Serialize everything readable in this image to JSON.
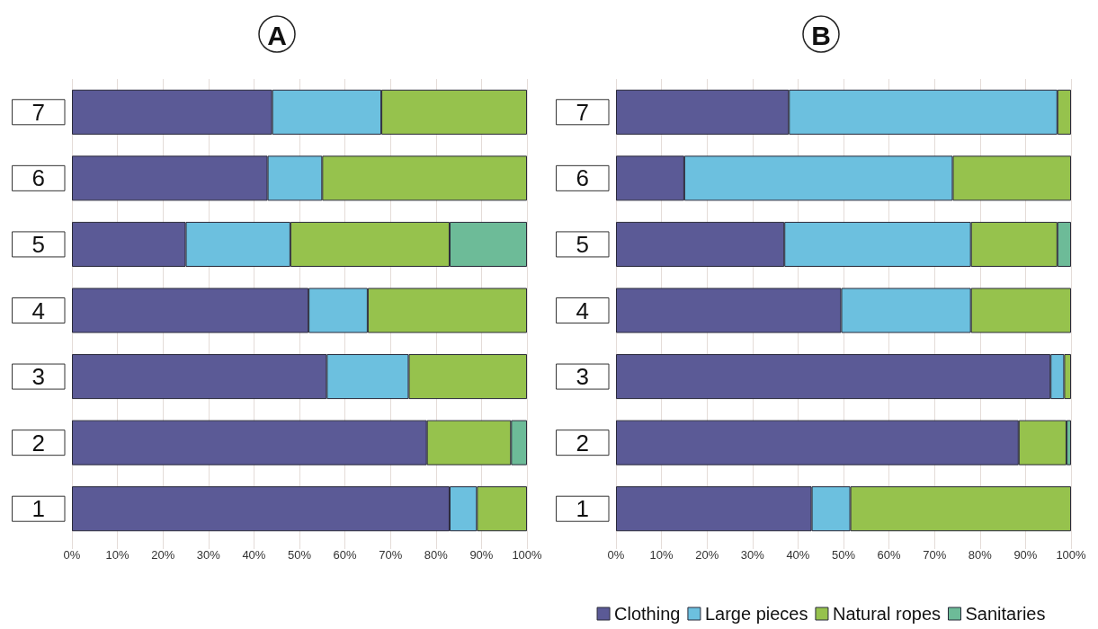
{
  "chart_data": [
    {
      "type": "bar",
      "title": "A",
      "orientation": "horizontal",
      "stacked": true,
      "categories": [
        "7",
        "6",
        "5",
        "4",
        "3",
        "2",
        "1"
      ],
      "xlim": [
        0,
        100
      ],
      "xticks": [
        {
          "value": 0,
          "label": "0%"
        },
        {
          "value": 10,
          "label": "10%"
        },
        {
          "value": 20,
          "label": "20%"
        },
        {
          "value": 30,
          "label": "30%"
        },
        {
          "value": 40,
          "label": "40%"
        },
        {
          "value": 50,
          "label": "50%"
        },
        {
          "value": 60,
          "label": "60%"
        },
        {
          "value": 70,
          "label": "70%"
        },
        {
          "value": 80,
          "label": "80%"
        },
        {
          "value": 90,
          "label": "90%"
        },
        {
          "value": 100,
          "label": "100%"
        }
      ],
      "grid": "x",
      "legend": false,
      "series": [
        {
          "color": "#5b5a96",
          "values": [
            44,
            43,
            25,
            52,
            56,
            78,
            83
          ]
        },
        {
          "color": "#6cc0df",
          "values": [
            24,
            12,
            23,
            13,
            18,
            null,
            6
          ]
        },
        {
          "color": "#96c24d",
          "values": [
            32,
            45,
            35,
            35,
            26,
            18.5,
            11
          ]
        },
        {
          "color": "#6dbb98",
          "values": [
            null,
            null,
            17,
            null,
            null,
            3.5,
            null
          ]
        }
      ]
    },
    {
      "type": "bar",
      "title": "B",
      "orientation": "horizontal",
      "stacked": true,
      "categories": [
        "7",
        "6",
        "5",
        "4",
        "3",
        "2",
        "1"
      ],
      "xlim": [
        0,
        100
      ],
      "xticks": [
        {
          "value": 0,
          "label": "0%"
        },
        {
          "value": 10,
          "label": "10%"
        },
        {
          "value": 20,
          "label": "20%"
        },
        {
          "value": 30,
          "label": "30%"
        },
        {
          "value": 40,
          "label": "40%"
        },
        {
          "value": 50,
          "label": "50%"
        },
        {
          "value": 60,
          "label": "60%"
        },
        {
          "value": 70,
          "label": "70%"
        },
        {
          "value": 80,
          "label": "80%"
        },
        {
          "value": 90,
          "label": "90%"
        },
        {
          "value": 100,
          "label": "100%"
        }
      ],
      "grid": "x",
      "legend": "bottom",
      "series": [
        {
          "name": "Clothing",
          "color": "#5b5a96",
          "values": [
            38,
            15,
            37,
            49.5,
            95.5,
            88.5,
            43
          ]
        },
        {
          "name": "Large pieces",
          "color": "#6cc0df",
          "values": [
            59,
            59,
            41,
            28.5,
            3,
            null,
            8.5
          ]
        },
        {
          "name": "Natural ropes",
          "color": "#96c24d",
          "values": [
            3,
            26,
            19,
            22,
            1.5,
            10.5,
            48.5
          ]
        },
        {
          "name": "Sanitaries",
          "color": "#6dbb98",
          "values": [
            null,
            null,
            3,
            null,
            null,
            1,
            null
          ]
        }
      ]
    }
  ]
}
